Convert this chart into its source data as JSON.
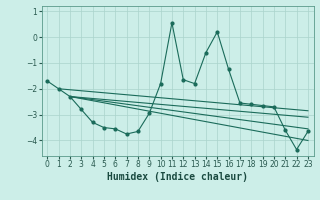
{
  "xlabel": "Humidex (Indice chaleur)",
  "background_color": "#cceee8",
  "grid_color": "#aad4cc",
  "line_color": "#1a6b5a",
  "xlim": [
    -0.5,
    23.5
  ],
  "ylim": [
    -4.6,
    1.2
  ],
  "yticks": [
    1,
    0,
    -1,
    -2,
    -3,
    -4
  ],
  "xticks": [
    0,
    1,
    2,
    3,
    4,
    5,
    6,
    7,
    8,
    9,
    10,
    11,
    12,
    13,
    14,
    15,
    16,
    17,
    18,
    19,
    20,
    21,
    22,
    23
  ],
  "main_x": [
    0,
    1,
    2,
    3,
    4,
    5,
    6,
    7,
    8,
    9,
    10,
    11,
    12,
    13,
    14,
    15,
    16,
    17,
    18,
    19,
    20,
    21,
    22,
    23
  ],
  "main_y": [
    -1.7,
    -2.0,
    -2.3,
    -2.8,
    -3.3,
    -3.5,
    -3.55,
    -3.75,
    -3.65,
    -2.95,
    -1.8,
    0.55,
    -1.65,
    -1.8,
    -0.6,
    0.2,
    -1.25,
    -2.55,
    -2.6,
    -2.65,
    -2.7,
    -3.6,
    -4.35,
    -3.65
  ],
  "tline1_x": [
    1,
    23
  ],
  "tline1_y": [
    -2.0,
    -2.85
  ],
  "tline2_x": [
    2,
    23
  ],
  "tline2_y": [
    -2.3,
    -3.1
  ],
  "tline3_x": [
    2,
    23
  ],
  "tline3_y": [
    -2.3,
    -3.55
  ],
  "tline4_x": [
    2,
    23
  ],
  "tline4_y": [
    -2.3,
    -4.0
  ],
  "fontsize_xlabel": 7,
  "fontsize_tick": 5.5,
  "markersize": 2.0,
  "linewidth": 0.8
}
